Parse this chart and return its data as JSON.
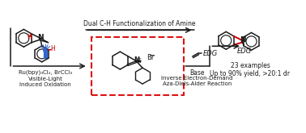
{
  "background_color": "#ffffff",
  "red_bond_color": "#cc0000",
  "blue_light_color": "#3366cc",
  "dashed_box_color": "#dd1111",
  "text_top_arrow": "Dual C-H Functionalization of Amine",
  "text_reagents": "Ru(bpy)₃Cl₂, BrCCl₃",
  "text_oxidation": "Visible-Light\nInduced Oxidation",
  "text_base": "Base",
  "text_reaction": "Inverse Electron-Demand\nAza-Diels-Alder Reaction",
  "text_examples": "23 examples\nUp to 90% yield, >20:1 dr",
  "text_edg_bottom": "EDG",
  "text_edg_product": "EDG",
  "figsize": [
    3.78,
    1.65
  ],
  "dpi": 100
}
